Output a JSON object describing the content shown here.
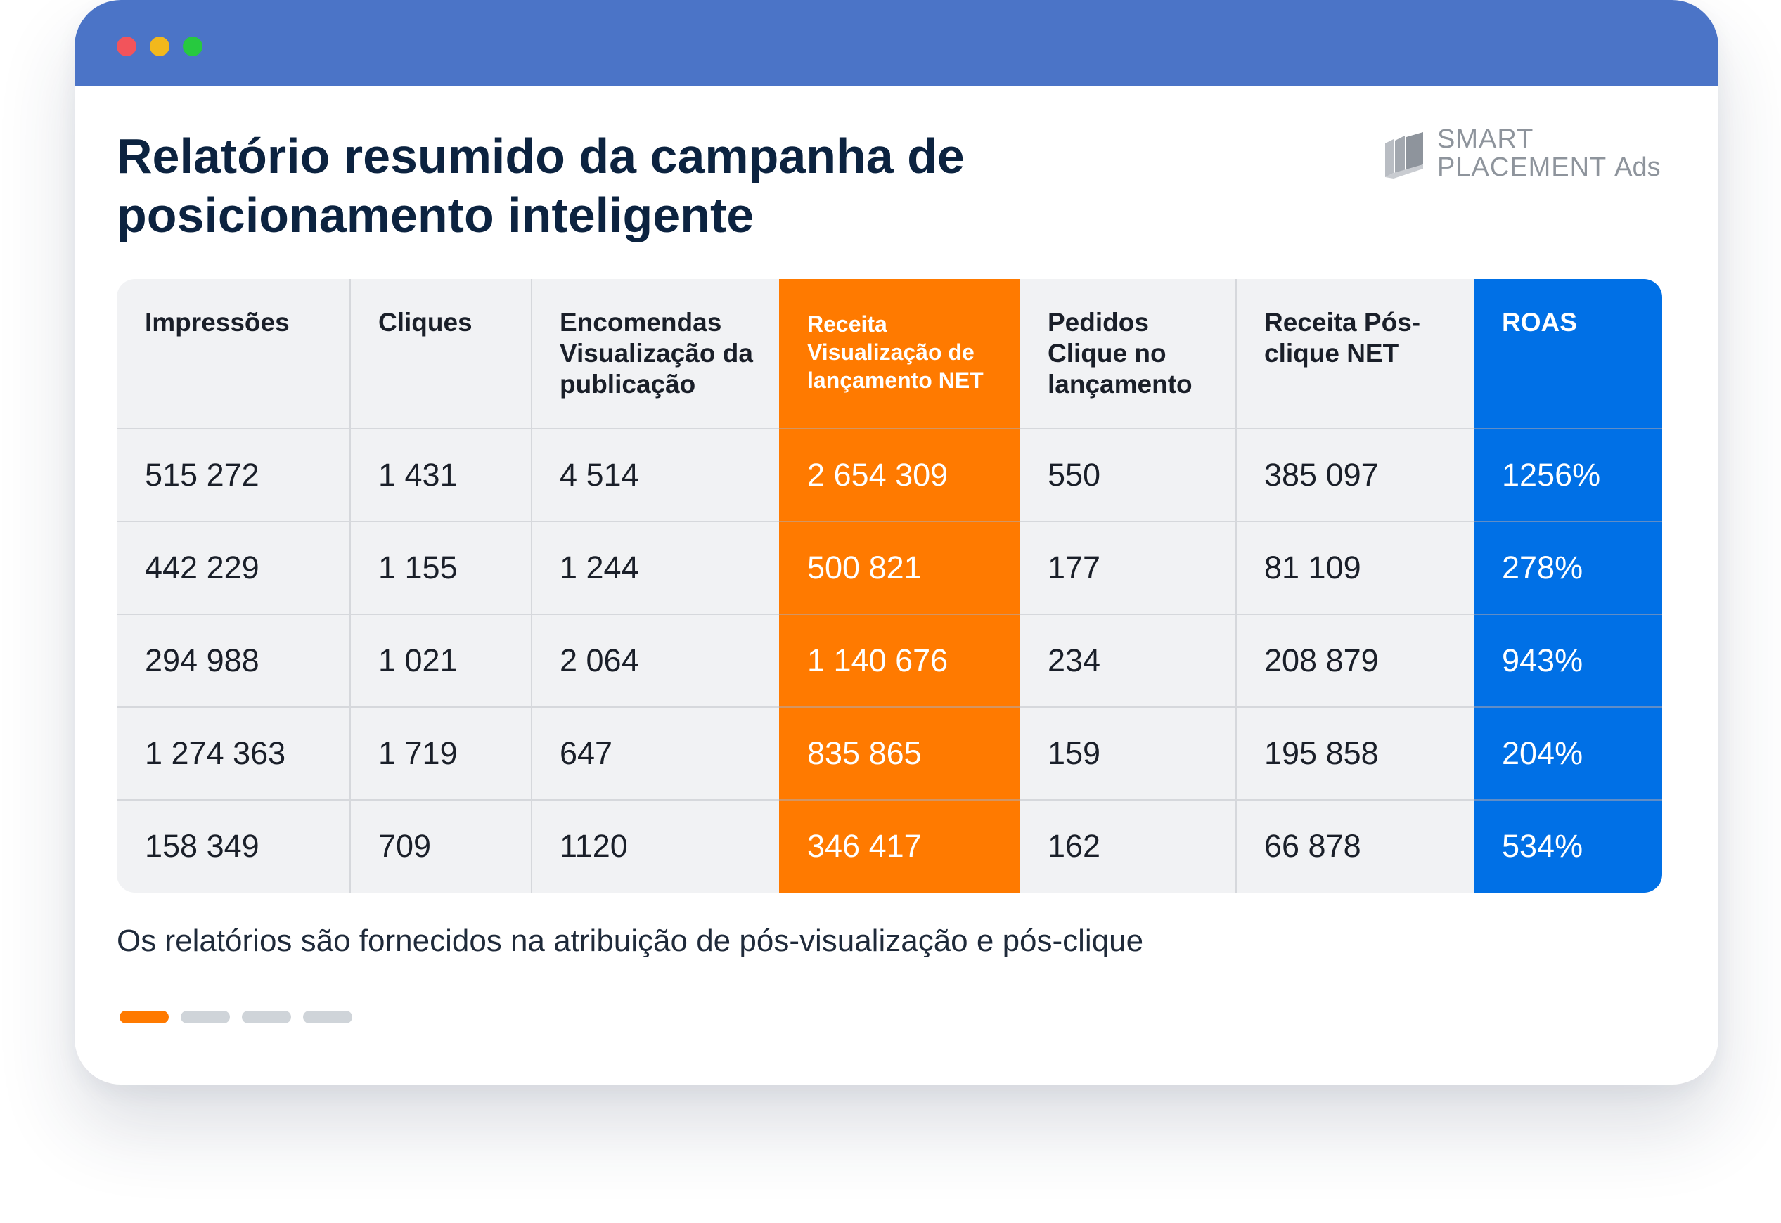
{
  "window": {
    "title": "Relatório resumido da campanha de posicionamento inteligente"
  },
  "logo": {
    "line1": "SMART",
    "line2": "PLACEMENT",
    "line2_suffix": "Ads",
    "icon": "stacked-panels-icon"
  },
  "table": {
    "headers": [
      "Impressões",
      "Cliques",
      "Encomendas Visualização da publicação",
      "Receita Visualização de lançamento NET",
      "Pedidos Clique no lançamento",
      "Receita Pós-clique NET",
      "ROAS"
    ],
    "rows": [
      [
        "515 272",
        "1 431",
        "4 514",
        "2 654 309",
        "550",
        "385 097",
        "1256%"
      ],
      [
        "442 229",
        "1 155",
        "1 244",
        "500 821",
        "177",
        "81 109",
        "278%"
      ],
      [
        "294 988",
        "1 021",
        "2 064",
        "1 140 676",
        "234",
        "208 879",
        "943%"
      ],
      [
        "1 274 363",
        "1 719",
        "647",
        "835 865",
        "159",
        "195 858",
        "204%"
      ],
      [
        "158 349",
        "709",
        "1120",
        "346 417",
        "162",
        "66 878",
        "534%"
      ]
    ],
    "highlight_colors": {
      "revenue_view_column": "#ff7a00",
      "roas_column": "#0070e6"
    }
  },
  "note": "Os relatórios são fornecidos na atribuição de pós-visualização e pós-clique",
  "pager": {
    "total": 4,
    "active_index": 0,
    "active_color": "#ff7a00",
    "inactive_color": "#cfd4d9"
  }
}
